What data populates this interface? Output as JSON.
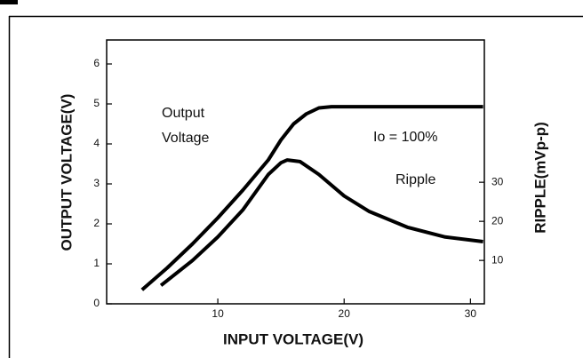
{
  "chart_data": {
    "type": "line",
    "xlabel": "INPUT VOLTAGE(V)",
    "ylabel": "OUTPUT VOLTAGE(V)",
    "y2label": "RIPPLE(mVp-p)",
    "annotations": [
      "Output",
      "Voltage",
      "Io = 100%",
      "Ripple"
    ],
    "xlim": [
      1.2,
      31.1
    ],
    "xticks": [
      10,
      20,
      30
    ],
    "ylim": [
      0,
      6.6
    ],
    "yticks": [
      0,
      1,
      2,
      3,
      4,
      5,
      6
    ],
    "y2lim": [
      -1.1,
      66.4
    ],
    "y2ticks": [
      10,
      20,
      30
    ],
    "grid": false,
    "series": [
      {
        "color": "#000000",
        "x": [
          4,
          6,
          8,
          10,
          12,
          14,
          15,
          16,
          17,
          18,
          19,
          31
        ],
        "values": [
          0.35,
          0.9,
          1.5,
          2.15,
          2.85,
          3.6,
          4.1,
          4.5,
          4.75,
          4.9,
          4.93,
          4.93
        ]
      },
      {
        "color": "#000000",
        "axis": "y2",
        "x": [
          5.5,
          8,
          10,
          12,
          14,
          15,
          15.5,
          16.5,
          18,
          20,
          22,
          25,
          28,
          31
        ],
        "values": [
          3.6,
          10,
          16,
          23,
          32,
          35,
          35.7,
          35.3,
          32,
          26.5,
          22.5,
          18.5,
          16,
          14.8
        ]
      }
    ]
  }
}
